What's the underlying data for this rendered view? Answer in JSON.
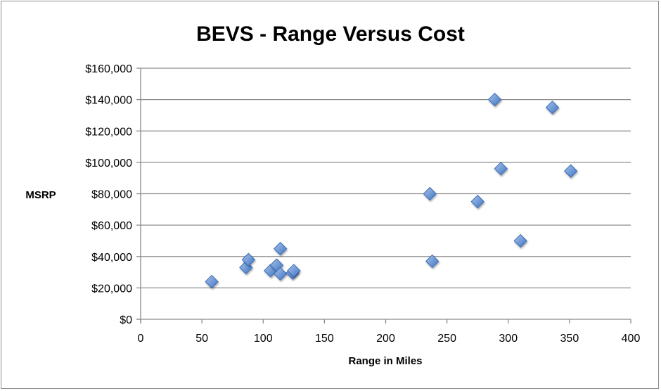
{
  "chart_data": {
    "type": "scatter",
    "title": "BEVS  - Range Versus Cost",
    "xlabel": "Range in Miles",
    "ylabel": "MSRP",
    "xlim": [
      0,
      400
    ],
    "ylim": [
      0,
      160000
    ],
    "x_ticks": [
      "0",
      "50",
      "100",
      "150",
      "200",
      "250",
      "300",
      "350",
      "400"
    ],
    "y_ticks": [
      "$0",
      "$20,000",
      "$40,000",
      "$60,000",
      "$80,000",
      "$100,000",
      "$120,000",
      "$140,000",
      "$160,000"
    ],
    "grid": "horizontal",
    "legend": "none",
    "marker": "diamond",
    "color": "#4f81bd",
    "points": [
      {
        "x": 58,
        "y": 24000
      },
      {
        "x": 86,
        "y": 33000
      },
      {
        "x": 88,
        "y": 38000
      },
      {
        "x": 106,
        "y": 31000
      },
      {
        "x": 111,
        "y": 34500
      },
      {
        "x": 114,
        "y": 29000
      },
      {
        "x": 114,
        "y": 45000
      },
      {
        "x": 124,
        "y": 29500
      },
      {
        "x": 125,
        "y": 31000
      },
      {
        "x": 236,
        "y": 80000
      },
      {
        "x": 238,
        "y": 37000
      },
      {
        "x": 275,
        "y": 75000
      },
      {
        "x": 289,
        "y": 140000
      },
      {
        "x": 294,
        "y": 96000
      },
      {
        "x": 310,
        "y": 50000
      },
      {
        "x": 336,
        "y": 135000
      },
      {
        "x": 351,
        "y": 94500
      }
    ]
  }
}
